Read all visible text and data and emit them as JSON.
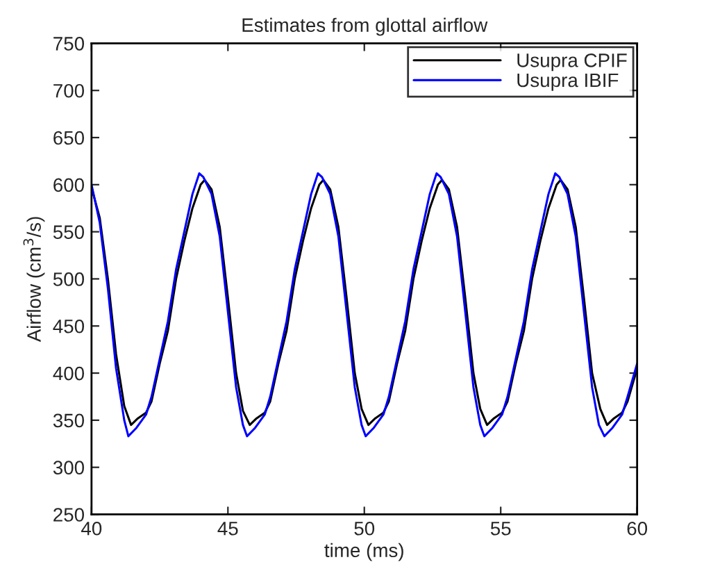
{
  "chart_data": {
    "type": "line",
    "title": "Estimates from glottal airflow",
    "xlabel": "time (ms)",
    "ylabel": "Airflow (cm$^{3}$/s)",
    "xlim": [
      40,
      60
    ],
    "xticks": [
      40,
      45,
      50,
      55,
      60
    ],
    "ylim": [
      250,
      750
    ],
    "yticks": [
      250,
      300,
      350,
      400,
      450,
      500,
      550,
      600,
      650,
      700,
      750
    ],
    "grid": false,
    "legend": "top right",
    "marker": "none",
    "line_style": "solid",
    "series": [
      {
        "name": "Usupra CPIF",
        "color": "#000000",
        "x": [
          40,
          40.3,
          40.6,
          40.9,
          41.2,
          41.45,
          41.7,
          42.0,
          42.2,
          42.5,
          42.8,
          43.1,
          43.4,
          43.7,
          44.0,
          44.15,
          44.4,
          44.7,
          45.0,
          45.3,
          45.55,
          45.8,
          46.05,
          46.35,
          46.55,
          46.85,
          47.15,
          47.45,
          47.75,
          48.05,
          48.35,
          48.5,
          48.75,
          49.05,
          49.35,
          49.65,
          49.9,
          50.15,
          50.4,
          50.7,
          50.9,
          51.2,
          51.5,
          51.8,
          52.1,
          52.4,
          52.7,
          52.85,
          53.1,
          53.4,
          53.7,
          54.0,
          54.25,
          54.5,
          54.75,
          55.05,
          55.25,
          55.55,
          55.85,
          56.15,
          56.45,
          56.75,
          57.05,
          57.2,
          57.45,
          57.75,
          58.05,
          58.35,
          58.65,
          58.9,
          59.15,
          59.45,
          59.65,
          60.0
        ],
        "values": [
          597,
          565,
          500,
          420,
          365,
          345,
          352,
          358,
          370,
          410,
          445,
          500,
          540,
          575,
          600,
          605,
          595,
          555,
          480,
          400,
          360,
          345,
          352,
          358,
          370,
          410,
          445,
          500,
          540,
          575,
          600,
          605,
          595,
          555,
          480,
          400,
          362,
          345,
          352,
          358,
          370,
          410,
          445,
          500,
          540,
          575,
          600,
          605,
          595,
          555,
          480,
          400,
          362,
          345,
          352,
          358,
          370,
          410,
          445,
          500,
          540,
          575,
          600,
          605,
          595,
          555,
          480,
          400,
          362,
          345,
          352,
          358,
          370,
          405
        ]
      },
      {
        "name": "Usupra IBIF",
        "color": "#0000ff",
        "x": [
          40,
          40.3,
          40.6,
          40.9,
          41.2,
          41.35,
          41.65,
          42.0,
          42.2,
          42.5,
          42.8,
          43.1,
          43.4,
          43.7,
          43.95,
          44.1,
          44.4,
          44.7,
          45.0,
          45.3,
          45.55,
          45.7,
          46.0,
          46.35,
          46.55,
          46.85,
          47.15,
          47.45,
          47.75,
          48.05,
          48.3,
          48.45,
          48.75,
          49.05,
          49.35,
          49.65,
          49.9,
          50.05,
          50.35,
          50.7,
          50.9,
          51.2,
          51.5,
          51.8,
          52.1,
          52.4,
          52.65,
          52.8,
          53.1,
          53.4,
          53.7,
          54.0,
          54.25,
          54.4,
          54.7,
          55.05,
          55.25,
          55.55,
          55.85,
          56.15,
          56.45,
          56.75,
          57.0,
          57.15,
          57.45,
          57.75,
          58.05,
          58.35,
          58.6,
          58.8,
          59.1,
          59.45,
          59.65,
          60.0
        ],
        "values": [
          600,
          560,
          490,
          405,
          350,
          333,
          342,
          356,
          375,
          415,
          455,
          510,
          550,
          590,
          612,
          608,
          590,
          545,
          465,
          385,
          345,
          333,
          342,
          356,
          375,
          415,
          455,
          510,
          550,
          590,
          612,
          608,
          590,
          545,
          465,
          385,
          345,
          333,
          342,
          356,
          375,
          415,
          455,
          510,
          550,
          590,
          612,
          608,
          590,
          545,
          465,
          385,
          345,
          333,
          342,
          356,
          375,
          415,
          455,
          510,
          550,
          590,
          612,
          608,
          590,
          545,
          465,
          385,
          345,
          333,
          342,
          356,
          375,
          410
        ]
      }
    ]
  }
}
